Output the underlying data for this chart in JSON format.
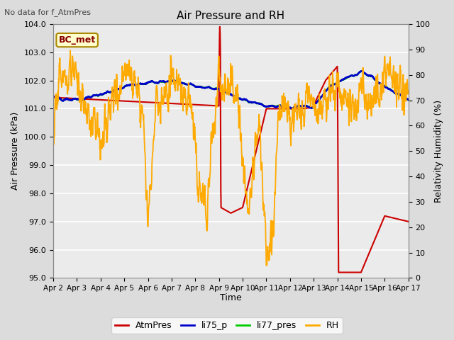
{
  "title": "Air Pressure and RH",
  "top_left_note": "No data for f_AtmPres",
  "box_label": "BC_met",
  "xlabel": "Time",
  "ylabel_left": "Air Pressure (kPa)",
  "ylabel_right": "Relativity Humidity (%)",
  "ylim_left": [
    95.0,
    104.0
  ],
  "ylim_right": [
    0,
    100
  ],
  "yticks_left": [
    95.0,
    96.0,
    97.0,
    98.0,
    99.0,
    100.0,
    101.0,
    102.0,
    103.0,
    104.0
  ],
  "yticks_right": [
    0,
    10,
    20,
    30,
    40,
    50,
    60,
    70,
    80,
    90,
    100
  ],
  "xtick_labels": [
    "Apr 2",
    "Apr 3",
    "Apr 4",
    "Apr 5",
    "Apr 6",
    "Apr 7",
    "Apr 8",
    "Apr 9",
    "Apr 10",
    "Apr 11",
    "Apr 12",
    "Apr 13",
    "Apr 14",
    "Apr 15",
    "Apr 16",
    "Apr 17"
  ],
  "bg_color": "#dcdcdc",
  "plot_bg_color": "#ebebeb",
  "grid_color": "white",
  "colors": {
    "AtmPres": "#cc0000",
    "li75_p": "#0000cc",
    "li77_pres": "#00cc00",
    "RH": "#ffaa00"
  },
  "linewidths": {
    "AtmPres": 1.5,
    "li75_p": 1.8,
    "li77_pres": 1.8,
    "RH": 1.3
  },
  "n_days": 15,
  "pts_per_day": 96,
  "seed": 12345
}
